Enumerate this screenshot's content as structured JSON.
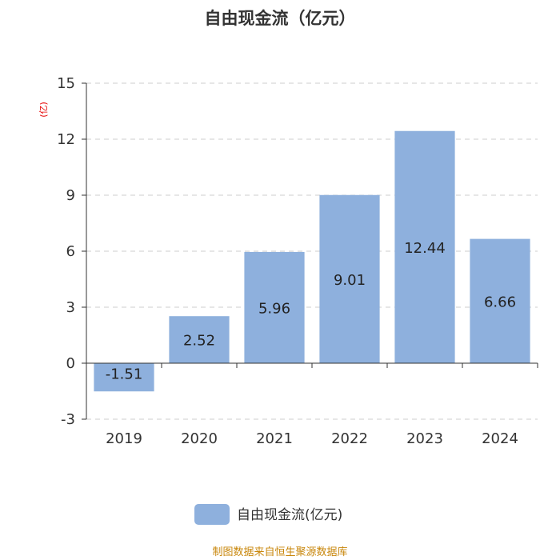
{
  "chart_data": {
    "type": "bar",
    "title": "自由现金流（亿元）",
    "y_unit": "(亿)",
    "categories": [
      "2019",
      "2020",
      "2021",
      "2022",
      "2023",
      "2024"
    ],
    "series": [
      {
        "name": "自由现金流(亿元)",
        "values": [
          -1.51,
          2.52,
          5.96,
          9.01,
          12.44,
          6.66
        ]
      }
    ],
    "data_labels": [
      "-1.51",
      "2.52",
      "5.96",
      "9.01",
      "12.44",
      "6.66"
    ],
    "ylim": [
      -3,
      15
    ],
    "yticks": [
      -3,
      0,
      3,
      6,
      9,
      12,
      15
    ],
    "grid": true,
    "legend_position": "bottom-center",
    "bar_color": "#8eb0dd"
  },
  "source": "制图数据来自恒生聚源数据库"
}
